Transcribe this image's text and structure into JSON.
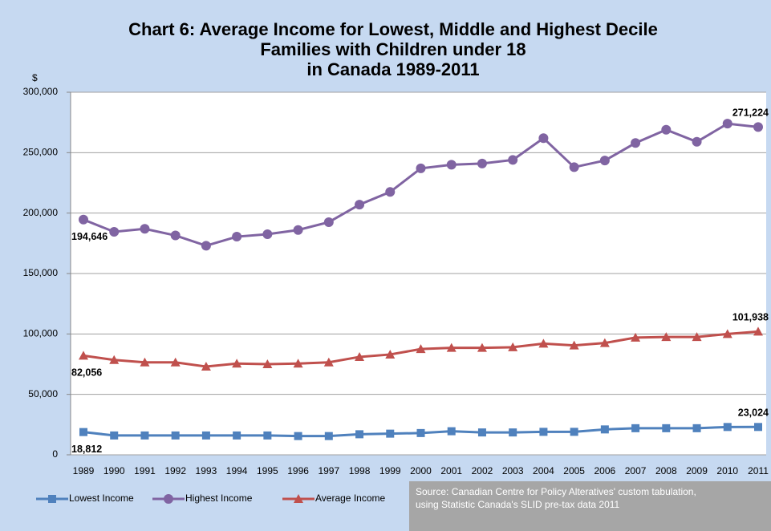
{
  "chart_data": {
    "type": "line",
    "title": [
      "Chart 6: Average Income for Lowest, Middle and Highest Decile",
      "Families with Children under 18",
      "in Canada 1989-2011"
    ],
    "y_label": "$",
    "annotation": [
      "Source: Canadian Centre for Policy Alteratives' custom tabulation,",
      "using Statistic Canada's SLID pre-tax data 2011"
    ],
    "categories": [
      "1989",
      "1990",
      "1991",
      "1992",
      "1993",
      "1994",
      "1995",
      "1996",
      "1997",
      "1998",
      "1999",
      "2000",
      "2001",
      "2002",
      "2003",
      "2004",
      "2005",
      "2006",
      "2007",
      "2008",
      "2009",
      "2010",
      "2011"
    ],
    "series": [
      {
        "name": "Lowest Income",
        "color": "#4f81bd",
        "marker": "square",
        "values": [
          18812,
          16000,
          16000,
          16000,
          16000,
          16000,
          16000,
          15500,
          15500,
          17000,
          17500,
          18000,
          19500,
          18500,
          18500,
          19000,
          19000,
          21000,
          22000,
          22000,
          22000,
          23000,
          23024
        ],
        "value_labels": [
          "18,812",
          null,
          null,
          null,
          null,
          null,
          null,
          null,
          null,
          null,
          null,
          null,
          null,
          null,
          null,
          null,
          null,
          null,
          null,
          null,
          null,
          null,
          "23,024"
        ]
      },
      {
        "name": "Highest Income",
        "color": "#8064a2",
        "marker": "circle",
        "values": [
          194646,
          184500,
          187000,
          181500,
          173000,
          180500,
          182500,
          186000,
          192500,
          207000,
          217500,
          237000,
          240000,
          241000,
          244000,
          262000,
          238000,
          243500,
          258000,
          269000,
          259000,
          274000,
          271224
        ],
        "value_labels": [
          "194,646",
          null,
          null,
          null,
          null,
          null,
          null,
          null,
          null,
          null,
          null,
          null,
          null,
          null,
          null,
          null,
          null,
          null,
          null,
          null,
          null,
          null,
          "271,224"
        ]
      },
      {
        "name": "Average Income",
        "color": "#c0504d",
        "marker": "triangle",
        "values": [
          82056,
          78500,
          76500,
          76500,
          73000,
          75500,
          75000,
          75500,
          76500,
          81000,
          83000,
          87500,
          88500,
          88500,
          89000,
          92000,
          90500,
          92500,
          97000,
          97500,
          97500,
          100000,
          101938
        ],
        "value_labels": [
          "82,056",
          null,
          null,
          null,
          null,
          null,
          null,
          null,
          null,
          null,
          null,
          null,
          null,
          null,
          null,
          null,
          null,
          null,
          null,
          null,
          null,
          null,
          "101,938"
        ]
      }
    ],
    "ylim": [
      0,
      300000
    ],
    "yticks": [
      0,
      {
        "value": 50000,
        "label": "50,000"
      },
      {
        "value": 100000,
        "label": "100,000"
      },
      {
        "value": 150000,
        "label": "150,000"
      },
      {
        "value": 200000,
        "label": "200,000"
      },
      {
        "value": 250000,
        "label": "250,000"
      },
      {
        "value": 300000,
        "label": "300,000"
      }
    ],
    "grid": true
  }
}
